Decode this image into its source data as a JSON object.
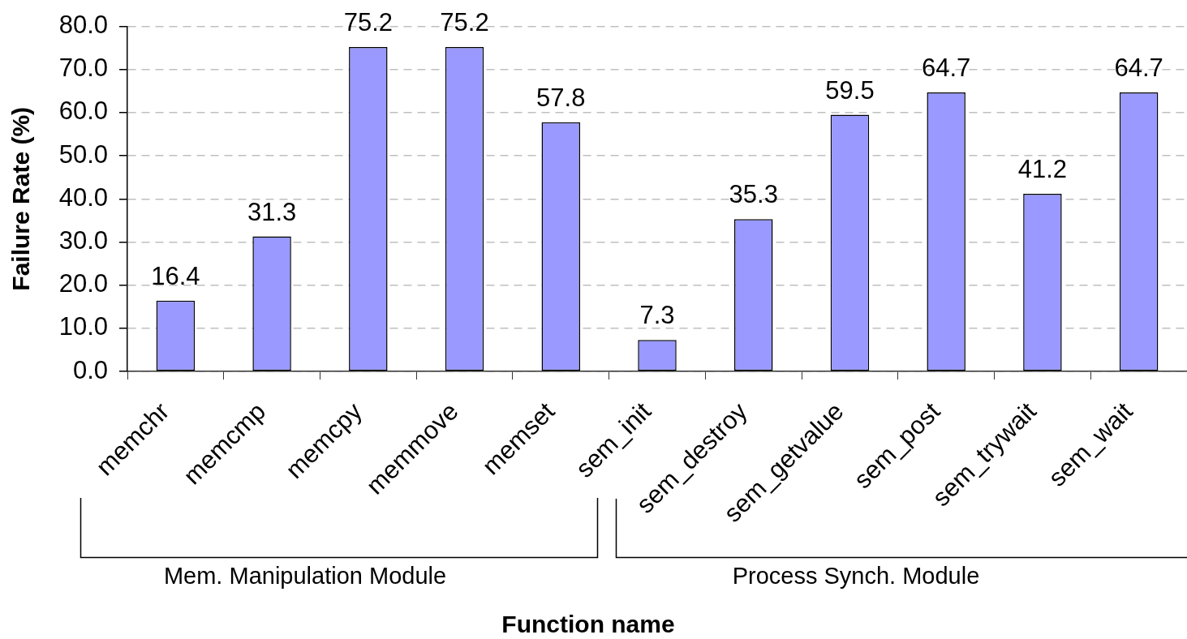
{
  "chart_data": {
    "type": "bar",
    "xlabel": "Function name",
    "ylabel": "Failure Rate (%)",
    "categories": [
      "memchr",
      "memcmp",
      "memcpy",
      "memmove",
      "memset",
      "sem_init",
      "sem_destroy",
      "sem_getvalue",
      "sem_post",
      "sem_trywait",
      "sem_wait"
    ],
    "values": [
      16.4,
      31.3,
      75.2,
      75.2,
      57.8,
      7.3,
      35.3,
      59.5,
      64.7,
      41.2,
      64.7
    ],
    "color": "#9999ff",
    "ylim": [
      0,
      80
    ],
    "yticks": [
      {
        "value": 0,
        "label": "0.0"
      },
      {
        "value": 10,
        "label": "10.0"
      },
      {
        "value": 20,
        "label": "20.0"
      },
      {
        "value": 30,
        "label": "30.0"
      },
      {
        "value": 40,
        "label": "40.0"
      },
      {
        "value": 50,
        "label": "50.0"
      },
      {
        "value": 60,
        "label": "60.0"
      },
      {
        "value": 70,
        "label": "70.0"
      },
      {
        "value": 80,
        "label": "80.0"
      }
    ],
    "grid": "y",
    "legend": false,
    "data_labels": true,
    "annotations": [
      "Mem. Manipulation Module",
      "Process Synch. Module"
    ]
  }
}
